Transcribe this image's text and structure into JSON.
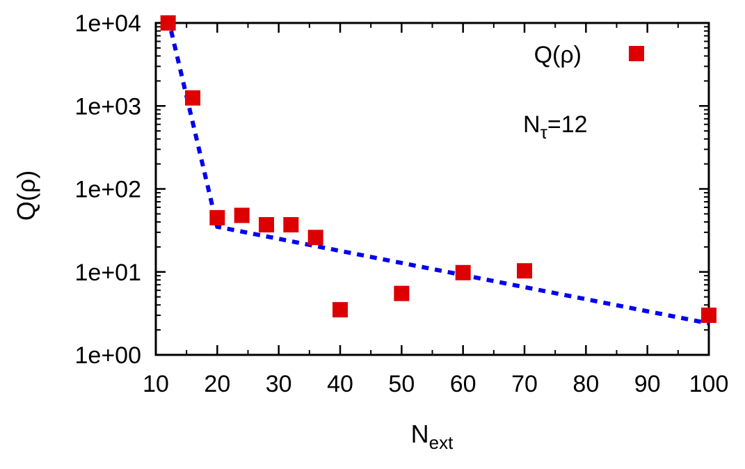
{
  "chart_data": {
    "type": "scatter",
    "ylabel": "Q(ρ)",
    "xlabel": {
      "main": "N",
      "sub": "ext"
    },
    "xlim": [
      10,
      100
    ],
    "ylim": [
      1,
      10000
    ],
    "yscale": "log",
    "xticks": [
      10,
      20,
      30,
      40,
      50,
      60,
      70,
      80,
      90,
      100
    ],
    "xtick_labels": [
      "10",
      "20",
      "30",
      "40",
      "50",
      "60",
      "70",
      "80",
      "90",
      "100"
    ],
    "yticks": [
      1,
      10,
      100,
      1000,
      10000
    ],
    "ytick_labels": [
      "1e+00",
      "1e+01",
      "1e+02",
      "1e+03",
      "1e+04"
    ],
    "legend_position": "top-right",
    "annotation": {
      "main": "N",
      "sub": "τ",
      "suffix": "=12"
    },
    "series": [
      {
        "name": "Q(ρ)",
        "marker": "square",
        "color": "#dd0000",
        "x": [
          12,
          16,
          20,
          24,
          28,
          32,
          36,
          40,
          50,
          60,
          70,
          100
        ],
        "y": [
          10000,
          1250,
          45,
          48,
          37,
          37,
          26,
          3.5,
          5.5,
          9.8,
          10.3,
          3.0
        ]
      },
      {
        "name": "",
        "style": "dotted-line",
        "color": "#0000ee",
        "x": [
          12,
          20,
          100
        ],
        "y": [
          11500,
          35,
          2.4
        ]
      }
    ]
  }
}
